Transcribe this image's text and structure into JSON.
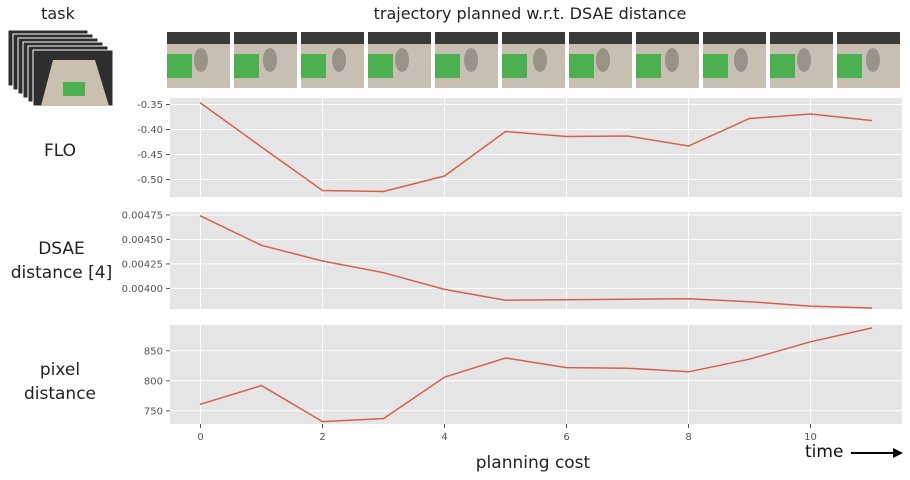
{
  "header": {
    "task_label": "task",
    "trajectory_label": "trajectory planned w.r.t. DSAE distance"
  },
  "row_labels": {
    "flo": "FLO",
    "dsae_line1": "DSAE",
    "dsae_line2": "distance [4]",
    "pixel_line1": "pixel",
    "pixel_line2": "distance"
  },
  "xlabel": "planning cost",
  "time_label": "time",
  "thumbnail_count": 11,
  "colors": {
    "line": "#d6604d",
    "panel": "#e5e5e5",
    "grid": "#ffffff",
    "floor": "#c9c0b0",
    "mat": "#4caf50"
  },
  "chart_data": [
    {
      "type": "line",
      "x": [
        0,
        1,
        2,
        3,
        4,
        5,
        6,
        7,
        8,
        9,
        10,
        11
      ],
      "values": [
        -0.347,
        -0.435,
        -0.522,
        -0.524,
        -0.493,
        -0.404,
        -0.414,
        -0.413,
        -0.433,
        -0.378,
        -0.369,
        -0.382
      ],
      "ylim": [
        -0.535,
        -0.337
      ],
      "yticks": [
        -0.35,
        -0.4,
        -0.45,
        -0.5
      ],
      "yticklabels": [
        "-0.35",
        "-0.40",
        "-0.45",
        "-0.50"
      ],
      "xlim": [
        -0.5,
        11.5
      ],
      "grid": true
    },
    {
      "type": "line",
      "x": [
        0,
        1,
        2,
        3,
        4,
        5,
        6,
        7,
        8,
        9,
        10,
        11
      ],
      "values": [
        0.00474,
        0.00444,
        0.00428,
        0.00416,
        0.00399,
        0.00388,
        0.003885,
        0.00389,
        0.003895,
        0.003865,
        0.00382,
        0.0038
      ],
      "ylim": [
        0.00379,
        0.00478
      ],
      "yticks": [
        0.00475,
        0.0045,
        0.00425,
        0.004
      ],
      "yticklabels": [
        "0.00475",
        "0.00450",
        "0.00425",
        "0.00400"
      ],
      "xlim": [
        -0.5,
        11.5
      ],
      "grid": true
    },
    {
      "type": "line",
      "x": [
        0,
        1,
        2,
        3,
        4,
        5,
        6,
        7,
        8,
        9,
        10,
        11
      ],
      "values": [
        761,
        792,
        732,
        737,
        806,
        838,
        822,
        821,
        815,
        836,
        865,
        888
      ],
      "ylim": [
        728,
        893
      ],
      "yticks": [
        750,
        800,
        850
      ],
      "yticklabels": [
        "750",
        "800",
        "850"
      ],
      "xlim": [
        -0.5,
        11.5
      ],
      "xticks": [
        0,
        2,
        4,
        6,
        8,
        10
      ],
      "xticklabels": [
        "0",
        "2",
        "4",
        "6",
        "8",
        "10"
      ],
      "grid": true
    }
  ]
}
